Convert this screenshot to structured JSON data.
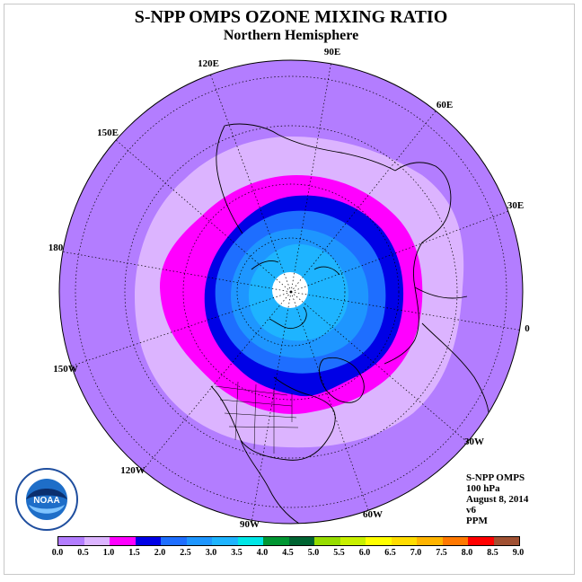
{
  "header": {
    "title": "S-NPP OMPS OZONE MIXING RATIO",
    "subtitle": "Northern Hemisphere"
  },
  "map": {
    "projection": "polar stereographic (north pole)",
    "longitude_labels": [
      "90E",
      "60E",
      "30E",
      "0",
      "30W",
      "60W",
      "90W",
      "120W",
      "150W",
      "180",
      "150E",
      "120E"
    ],
    "colors": {
      "ocean_outer": "#b37dff",
      "no_data": "#ffffff",
      "coastline": "#000000"
    }
  },
  "info": {
    "lines": [
      "S-NPP OMPS",
      "100 hPa",
      "August 8, 2014",
      "v6",
      "PPM"
    ]
  },
  "logo": {
    "text": "NOAA"
  },
  "colorbar": {
    "units": "PPM",
    "ticks": [
      "0.0",
      "0.5",
      "1.0",
      "1.5",
      "2.0",
      "2.5",
      "3.0",
      "3.5",
      "4.0",
      "4.5",
      "5.0",
      "5.5",
      "6.0",
      "6.5",
      "7.0",
      "7.5",
      "8.0",
      "8.5",
      "9.0"
    ],
    "colors": [
      "#b37dff",
      "#dcb4ff",
      "#ff00ff",
      "#0000e6",
      "#1e6eff",
      "#1e96ff",
      "#1eb4ff",
      "#00e6e6",
      "#009632",
      "#006432",
      "#96dc00",
      "#c8f000",
      "#ffff00",
      "#ffdc00",
      "#ffb400",
      "#ff7800",
      "#ff0000",
      "#a05032"
    ]
  }
}
